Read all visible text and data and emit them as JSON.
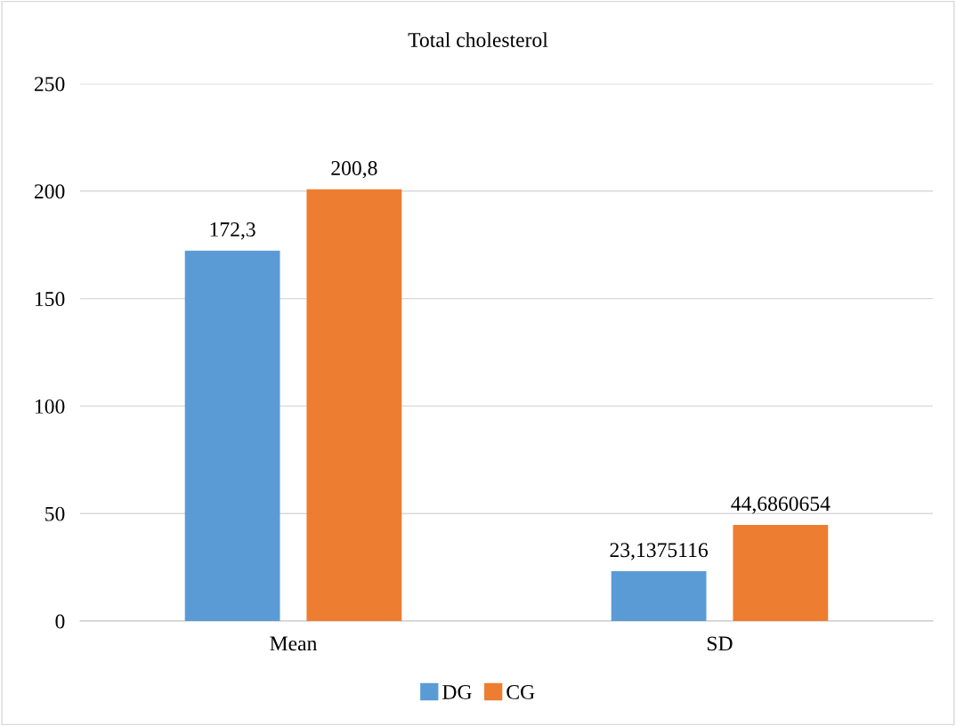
{
  "chart_data": {
    "type": "bar",
    "title": "Total cholesterol",
    "categories": [
      "Mean",
      "SD"
    ],
    "series": [
      {
        "name": "DG",
        "color": "#5b9bd5",
        "values": [
          172.3,
          23.1375116
        ],
        "value_labels": [
          "172,3",
          "23,1375116"
        ]
      },
      {
        "name": "CG",
        "color": "#ed7d31",
        "values": [
          200.8,
          44.6860654
        ],
        "value_labels": [
          "200,8",
          "44,6860654"
        ]
      }
    ],
    "ylim": [
      0,
      250
    ],
    "yticks": [
      0,
      50,
      100,
      150,
      200,
      250
    ],
    "grid": "y",
    "legend": "bottom"
  }
}
